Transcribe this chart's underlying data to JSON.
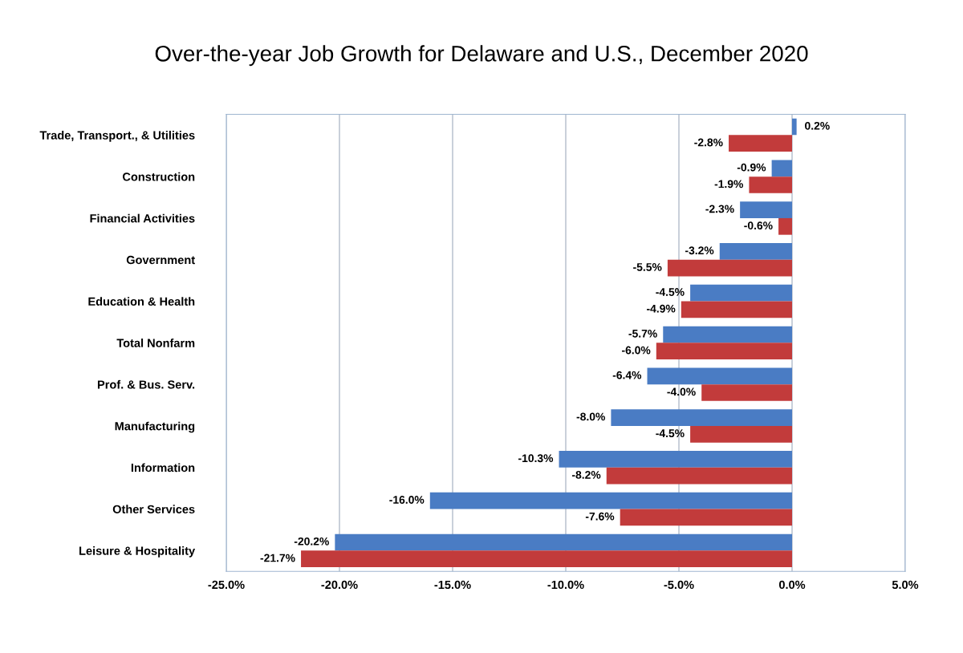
{
  "chart_data": {
    "type": "bar",
    "orientation": "horizontal",
    "title": "Over-the-year Job Growth for Delaware and U.S., December 2020",
    "categories": [
      "Trade, Transport., & Utilities",
      "Construction",
      "Financial Activities",
      "Government",
      "Education & Health",
      "Total Nonfarm",
      "Prof. & Bus. Serv.",
      "Manufacturing",
      "Information",
      "Other Services",
      "Leisure & Hospitality"
    ],
    "series": [
      {
        "color": "#4a7cc4",
        "values": [
          0.2,
          -0.9,
          -2.3,
          -3.2,
          -4.5,
          -5.7,
          -6.4,
          -8.0,
          -10.3,
          -16.0,
          -20.2
        ],
        "value_labels": [
          "0.2%",
          "-0.9%",
          "-2.3%",
          "-3.2%",
          "-4.5%",
          "-5.7%",
          "-6.4%",
          "-8.0%",
          "-10.3%",
          "-16.0%",
          "-20.2%"
        ]
      },
      {
        "color": "#c23b3b",
        "values": [
          -2.8,
          -1.9,
          -0.6,
          -5.5,
          -4.9,
          -6.0,
          -4.0,
          -4.5,
          -8.2,
          -7.6,
          -21.7
        ],
        "value_labels": [
          "-2.8%",
          "-1.9%",
          "-0.6%",
          "-5.5%",
          "-4.9%",
          "-6.0%",
          "-4.0%",
          "-4.5%",
          "-8.2%",
          "-7.6%",
          "-21.7%"
        ]
      }
    ],
    "xlim": [
      -25,
      5
    ],
    "xticks": [
      {
        "value": -25,
        "label": "-25.0%"
      },
      {
        "value": -20,
        "label": "-20.0%"
      },
      {
        "value": -15,
        "label": "-15.0%"
      },
      {
        "value": -10,
        "label": "-10.0%"
      },
      {
        "value": -5,
        "label": "-5.0%"
      },
      {
        "value": 0,
        "label": "0.0%"
      },
      {
        "value": 5,
        "label": "5.0%"
      }
    ],
    "grid": "x"
  }
}
